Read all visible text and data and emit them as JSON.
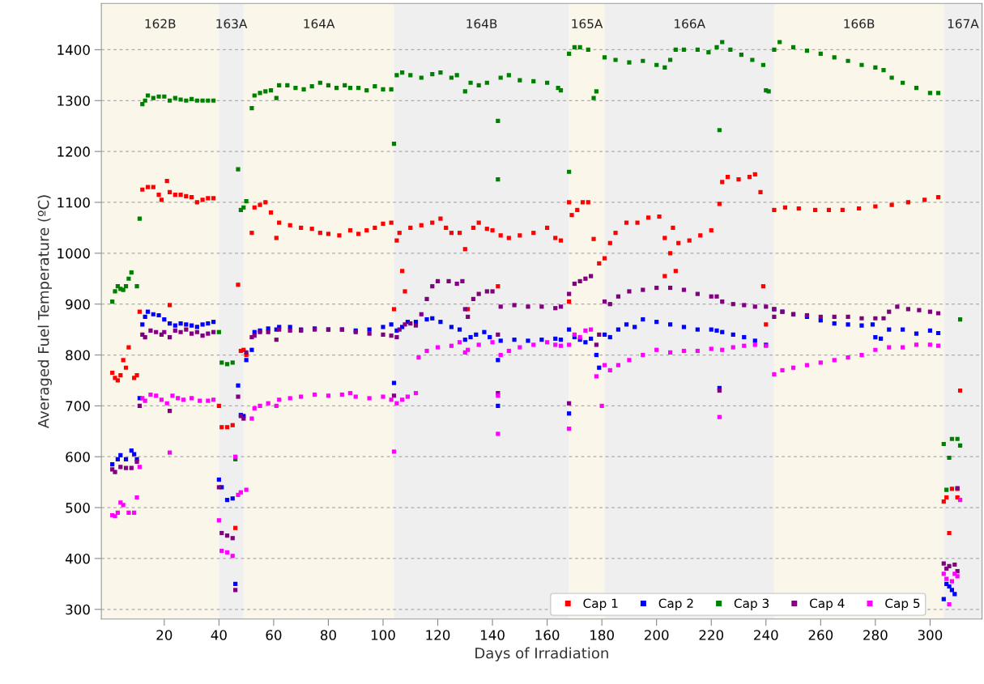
{
  "chart_data": {
    "type": "scatter",
    "xlabel": "Days of Irradiation",
    "ylabel": "Averaged Fuel Temperature (ºC)",
    "xlim": [
      -3,
      319
    ],
    "ylim": [
      281,
      1491
    ],
    "xticks": [
      20,
      40,
      60,
      80,
      100,
      120,
      140,
      160,
      180,
      200,
      220,
      240,
      260,
      280,
      300
    ],
    "yticks": [
      300,
      400,
      500,
      600,
      700,
      800,
      900,
      1000,
      1100,
      1200,
      1300,
      1400
    ],
    "grid": "y",
    "legend": "bottom right",
    "marker": "square",
    "bands": [
      {
        "axis": "x",
        "from": -3,
        "to": 40,
        "label": "162B",
        "color": "#faf6ea"
      },
      {
        "axis": "x",
        "from": 40,
        "to": 49,
        "label": "163A",
        "color": "#efefef"
      },
      {
        "axis": "x",
        "from": 49,
        "to": 104,
        "label": "164A",
        "color": "#faf6ea"
      },
      {
        "axis": "x",
        "from": 104,
        "to": 168,
        "label": "164B",
        "color": "#efefef"
      },
      {
        "axis": "x",
        "from": 168,
        "to": 181,
        "label": "165A",
        "color": "#faf6ea"
      },
      {
        "axis": "x",
        "from": 181,
        "to": 243,
        "label": "166A",
        "color": "#efefef"
      },
      {
        "axis": "x",
        "from": 243,
        "to": 305,
        "label": "166B",
        "color": "#faf6ea"
      },
      {
        "axis": "x",
        "from": 305,
        "to": 319,
        "label": "167A",
        "color": "#efefef"
      }
    ],
    "series": [
      {
        "name": "Cap 1",
        "color": "#ff0000",
        "x": [
          1,
          2,
          3,
          4,
          5,
          6,
          7,
          9,
          10,
          11,
          12,
          14,
          16,
          18,
          19,
          21,
          22,
          22,
          24,
          26,
          28,
          30,
          32,
          34,
          36,
          38,
          40,
          41,
          43,
          45,
          46,
          47,
          48,
          49,
          50,
          52,
          53,
          55,
          57,
          59,
          61,
          62,
          66,
          70,
          74,
          77,
          80,
          84,
          88,
          91,
          94,
          97,
          100,
          103,
          104,
          105,
          106,
          107,
          108,
          110,
          114,
          118,
          121,
          123,
          125,
          128,
          130,
          131,
          133,
          135,
          138,
          140,
          142,
          143,
          146,
          150,
          155,
          160,
          163,
          165,
          168,
          168,
          169,
          171,
          173,
          175,
          177,
          179,
          181,
          183,
          185,
          189,
          193,
          197,
          201,
          203,
          203,
          205,
          206,
          207,
          208,
          212,
          216,
          220,
          223,
          224,
          226,
          230,
          234,
          236,
          238,
          239,
          240,
          243,
          247,
          252,
          258,
          263,
          268,
          274,
          280,
          286,
          292,
          298,
          303,
          305,
          306,
          307,
          308,
          310,
          310,
          311
        ],
        "values": [
          765,
          755,
          750,
          760,
          790,
          775,
          815,
          755,
          760,
          885,
          1125,
          1130,
          1130,
          1115,
          1105,
          1142,
          1120,
          898,
          1115,
          1115,
          1112,
          1110,
          1100,
          1105,
          1108,
          1108,
          700,
          658,
          658,
          662,
          460,
          938,
          808,
          810,
          800,
          1040,
          1090,
          1095,
          1100,
          1080,
          1030,
          1060,
          1055,
          1050,
          1048,
          1040,
          1038,
          1035,
          1045,
          1038,
          1045,
          1050,
          1058,
          1060,
          890,
          1025,
          1040,
          965,
          925,
          1050,
          1055,
          1060,
          1068,
          1050,
          1040,
          1040,
          1008,
          890,
          1050,
          1060,
          1048,
          1045,
          935,
          1035,
          1030,
          1035,
          1040,
          1050,
          1030,
          1025,
          1100,
          905,
          1075,
          1085,
          1100,
          1100,
          1028,
          980,
          990,
          1020,
          1040,
          1060,
          1060,
          1070,
          1072,
          1030,
          955,
          1000,
          1050,
          965,
          1020,
          1025,
          1035,
          1045,
          1097,
          1140,
          1150,
          1145,
          1150,
          1155,
          1120,
          935,
          860,
          1085,
          1090,
          1088,
          1085,
          1085,
          1085,
          1088,
          1092,
          1095,
          1100,
          1105,
          1110,
          512,
          520,
          450,
          537,
          537,
          520,
          730
        ]
      },
      {
        "name": "Cap 2",
        "color": "#0000ff",
        "x": [
          1,
          3,
          4,
          6,
          8,
          9,
          10,
          11,
          12,
          13,
          14,
          16,
          18,
          20,
          22,
          24,
          26,
          28,
          30,
          32,
          34,
          36,
          38,
          40,
          41,
          43,
          45,
          46,
          47,
          48,
          49,
          50,
          52,
          53,
          55,
          58,
          61,
          62,
          66,
          70,
          75,
          80,
          85,
          90,
          95,
          100,
          103,
          104,
          105,
          107,
          109,
          112,
          116,
          118,
          121,
          125,
          128,
          130,
          132,
          134,
          137,
          139,
          142,
          142,
          143,
          148,
          153,
          158,
          163,
          165,
          168,
          168,
          170,
          172,
          174,
          176,
          178,
          179,
          181,
          183,
          186,
          189,
          192,
          195,
          200,
          205,
          210,
          215,
          220,
          222,
          223,
          224,
          228,
          232,
          236,
          240,
          243,
          246,
          250,
          255,
          260,
          265,
          270,
          275,
          279,
          280,
          282,
          285,
          290,
          295,
          300,
          303,
          305,
          306,
          307,
          308,
          309
        ],
        "values": [
          585,
          595,
          603,
          595,
          612,
          605,
          595,
          715,
          860,
          875,
          885,
          880,
          878,
          870,
          862,
          858,
          862,
          860,
          858,
          855,
          860,
          862,
          865,
          555,
          540,
          515,
          518,
          350,
          740,
          682,
          680,
          790,
          810,
          845,
          848,
          852,
          850,
          855,
          855,
          850,
          852,
          850,
          850,
          848,
          850,
          855,
          860,
          745,
          848,
          855,
          865,
          865,
          870,
          872,
          865,
          855,
          850,
          830,
          835,
          840,
          845,
          835,
          790,
          700,
          828,
          830,
          828,
          830,
          832,
          830,
          850,
          685,
          835,
          830,
          825,
          832,
          800,
          775,
          840,
          835,
          850,
          860,
          855,
          870,
          865,
          860,
          855,
          850,
          850,
          848,
          735,
          845,
          840,
          835,
          828,
          820,
          890,
          885,
          880,
          875,
          868,
          862,
          860,
          858,
          860,
          835,
          832,
          850,
          850,
          842,
          848,
          843,
          320,
          350,
          345,
          338,
          330
        ]
      },
      {
        "name": "Cap 3",
        "color": "#008000",
        "x": [
          1,
          2,
          3,
          4,
          5,
          6,
          7,
          8,
          10,
          11,
          12,
          13,
          14,
          16,
          18,
          20,
          22,
          24,
          26,
          28,
          30,
          32,
          34,
          36,
          38,
          40,
          41,
          43,
          45,
          46,
          47,
          48,
          49,
          50,
          52,
          53,
          55,
          57,
          59,
          61,
          62,
          65,
          68,
          71,
          74,
          77,
          80,
          83,
          86,
          88,
          91,
          94,
          97,
          100,
          103,
          104,
          105,
          107,
          110,
          114,
          118,
          121,
          125,
          127,
          130,
          132,
          135,
          138,
          142,
          142,
          143,
          146,
          150,
          155,
          160,
          164,
          165,
          168,
          168,
          170,
          172,
          175,
          177,
          178,
          181,
          185,
          190,
          195,
          200,
          203,
          205,
          207,
          210,
          215,
          219,
          222,
          223,
          224,
          227,
          231,
          235,
          239,
          240,
          241,
          243,
          245,
          250,
          255,
          260,
          265,
          270,
          275,
          280,
          283,
          286,
          290,
          295,
          300,
          303,
          305,
          306,
          307,
          308,
          310,
          311,
          311
        ],
        "values": [
          905,
          925,
          935,
          930,
          928,
          935,
          950,
          962,
          935,
          1068,
          1293,
          1300,
          1310,
          1305,
          1308,
          1308,
          1300,
          1305,
          1302,
          1300,
          1303,
          1300,
          1300,
          1300,
          1300,
          845,
          785,
          782,
          785,
          595,
          1165,
          1085,
          1090,
          1102,
          1285,
          1310,
          1315,
          1318,
          1320,
          1305,
          1330,
          1330,
          1325,
          1322,
          1328,
          1335,
          1330,
          1325,
          1330,
          1325,
          1325,
          1320,
          1328,
          1322,
          1322,
          1215,
          1350,
          1355,
          1350,
          1345,
          1352,
          1355,
          1345,
          1350,
          1318,
          1335,
          1330,
          1335,
          1260,
          1145,
          1345,
          1350,
          1340,
          1338,
          1335,
          1325,
          1320,
          1392,
          1160,
          1405,
          1405,
          1400,
          1305,
          1318,
          1385,
          1380,
          1375,
          1378,
          1370,
          1365,
          1380,
          1400,
          1400,
          1400,
          1395,
          1405,
          1242,
          1415,
          1400,
          1390,
          1380,
          1370,
          1320,
          1318,
          1400,
          1415,
          1405,
          1398,
          1392,
          1385,
          1378,
          1370,
          1365,
          1360,
          1345,
          1335,
          1325,
          1315,
          1315,
          625,
          535,
          598,
          635,
          635,
          622,
          870
        ]
      },
      {
        "name": "Cap 4",
        "color": "#800080",
        "x": [
          1,
          2,
          4,
          6,
          8,
          10,
          11,
          12,
          13,
          15,
          17,
          19,
          20,
          22,
          22,
          24,
          26,
          28,
          30,
          32,
          34,
          36,
          38,
          40,
          41,
          43,
          45,
          46,
          47,
          48,
          49,
          50,
          52,
          53,
          55,
          58,
          61,
          62,
          66,
          70,
          75,
          80,
          85,
          90,
          95,
          100,
          103,
          104,
          105,
          106,
          108,
          110,
          112,
          114,
          116,
          118,
          120,
          124,
          127,
          129,
          130,
          131,
          133,
          135,
          138,
          140,
          142,
          142,
          143,
          148,
          153,
          158,
          163,
          165,
          168,
          168,
          170,
          172,
          174,
          176,
          178,
          179,
          181,
          183,
          186,
          190,
          195,
          200,
          205,
          210,
          215,
          220,
          222,
          223,
          224,
          228,
          232,
          236,
          240,
          243,
          243,
          246,
          250,
          255,
          260,
          265,
          270,
          275,
          280,
          283,
          285,
          288,
          292,
          296,
          300,
          303,
          305,
          306,
          307,
          309,
          310,
          310
        ],
        "values": [
          575,
          570,
          580,
          578,
          578,
          590,
          700,
          840,
          835,
          848,
          845,
          840,
          845,
          690,
          835,
          848,
          845,
          850,
          842,
          845,
          838,
          842,
          845,
          540,
          450,
          445,
          440,
          338,
          718,
          680,
          675,
          805,
          835,
          838,
          845,
          845,
          830,
          850,
          848,
          848,
          850,
          850,
          850,
          845,
          842,
          840,
          838,
          720,
          835,
          850,
          860,
          862,
          858,
          880,
          910,
          935,
          945,
          945,
          940,
          945,
          890,
          875,
          910,
          920,
          925,
          925,
          725,
          840,
          895,
          898,
          895,
          895,
          892,
          895,
          920,
          705,
          940,
          945,
          950,
          955,
          820,
          840,
          905,
          900,
          915,
          925,
          928,
          932,
          932,
          928,
          920,
          915,
          915,
          730,
          905,
          900,
          898,
          895,
          895,
          875,
          890,
          885,
          880,
          878,
          875,
          875,
          875,
          872,
          872,
          872,
          885,
          895,
          890,
          888,
          885,
          882,
          390,
          380,
          385,
          388,
          375,
          538
        ]
      },
      {
        "name": "Cap 5",
        "color": "#ff00ff",
        "x": [
          1,
          2,
          3,
          4,
          5,
          7,
          9,
          10,
          11,
          12,
          13,
          15,
          17,
          19,
          21,
          22,
          23,
          25,
          27,
          30,
          33,
          36,
          38,
          40,
          41,
          43,
          45,
          46,
          47,
          48,
          50,
          52,
          53,
          55,
          58,
          61,
          62,
          66,
          70,
          75,
          80,
          85,
          88,
          90,
          95,
          100,
          103,
          104,
          105,
          107,
          109,
          112,
          113,
          116,
          120,
          125,
          128,
          130,
          131,
          135,
          140,
          142,
          142,
          143,
          146,
          150,
          155,
          160,
          163,
          165,
          168,
          168,
          170,
          172,
          174,
          176,
          178,
          180,
          181,
          183,
          186,
          190,
          195,
          200,
          205,
          210,
          215,
          220,
          223,
          224,
          228,
          232,
          236,
          240,
          243,
          246,
          250,
          255,
          260,
          265,
          270,
          275,
          280,
          285,
          290,
          295,
          300,
          303,
          305,
          306,
          307,
          308,
          309,
          310,
          311
        ],
        "values": [
          485,
          483,
          490,
          510,
          505,
          490,
          490,
          520,
          580,
          715,
          710,
          722,
          720,
          712,
          705,
          608,
          720,
          715,
          712,
          715,
          710,
          710,
          712,
          475,
          415,
          412,
          405,
          600,
          525,
          530,
          535,
          675,
          695,
          700,
          705,
          700,
          712,
          715,
          718,
          722,
          720,
          722,
          725,
          718,
          715,
          718,
          712,
          610,
          705,
          712,
          718,
          725,
          795,
          808,
          815,
          818,
          825,
          805,
          810,
          820,
          825,
          720,
          645,
          800,
          808,
          815,
          820,
          825,
          820,
          818,
          820,
          655,
          840,
          835,
          848,
          850,
          758,
          700,
          780,
          770,
          780,
          790,
          800,
          810,
          805,
          808,
          808,
          812,
          678,
          810,
          815,
          818,
          820,
          818,
          762,
          770,
          775,
          780,
          785,
          790,
          795,
          800,
          810,
          815,
          815,
          820,
          820,
          818,
          370,
          360,
          310,
          355,
          370,
          365,
          515
        ]
      }
    ]
  }
}
